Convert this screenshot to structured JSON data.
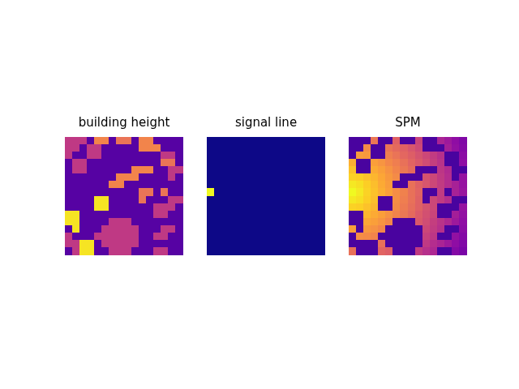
{
  "chart_data": [
    {
      "type": "heatmap",
      "title": "building height",
      "color": "plasma",
      "color_range": [
        0,
        1
      ],
      "tick_labels": false,
      "xlim": [
        -0.5,
        15.5
      ],
      "ylim": [
        15.5,
        -0.5
      ],
      "cells": [
        [
          0.45,
          0.45,
          0.45,
          0.15,
          0.7,
          0.7,
          0.15,
          0.65,
          0.65,
          0.15,
          0.7,
          0.7,
          0.15,
          0.15,
          0.15,
          0.15
        ],
        [
          0.45,
          0.45,
          0.15,
          0.45,
          0.45,
          0.15,
          0.15,
          0.15,
          0.15,
          0.15,
          0.7,
          0.7,
          0.7,
          0.15,
          0.15,
          0.15
        ],
        [
          0.45,
          0.15,
          0.15,
          0.45,
          0.45,
          0.15,
          0.15,
          0.15,
          0.15,
          0.15,
          0.15,
          0.15,
          0.15,
          0.45,
          0.45,
          0.15
        ],
        [
          0.15,
          0.45,
          0.45,
          0.15,
          0.15,
          0.15,
          0.15,
          0.15,
          0.15,
          0.15,
          0.15,
          0.15,
          0.15,
          0.65,
          0.65,
          0.15
        ],
        [
          0.15,
          0.45,
          0.45,
          0.15,
          0.15,
          0.15,
          0.15,
          0.15,
          0.15,
          0.7,
          0.7,
          0.7,
          0.15,
          0.15,
          0.45,
          0.45
        ],
        [
          0.15,
          0.15,
          0.15,
          0.15,
          0.15,
          0.15,
          0.15,
          0.7,
          0.7,
          0.7,
          0.15,
          0.15,
          0.15,
          0.15,
          0.45,
          0.15
        ],
        [
          0.15,
          0.15,
          0.15,
          0.15,
          0.15,
          0.15,
          0.7,
          0.7,
          0.15,
          0.15,
          0.15,
          0.15,
          0.15,
          0.15,
          0.15,
          0.15
        ],
        [
          0.15,
          0.15,
          0.15,
          0.15,
          0.15,
          0.15,
          0.15,
          0.15,
          0.15,
          0.15,
          0.65,
          0.65,
          0.15,
          0.65,
          0.15,
          0.15
        ],
        [
          0.15,
          0.15,
          0.15,
          0.15,
          0.95,
          0.95,
          0.15,
          0.15,
          0.15,
          0.15,
          0.65,
          0.15,
          0.15,
          0.15,
          0.45,
          0.45
        ],
        [
          0.15,
          0.15,
          0.15,
          0.15,
          0.95,
          0.95,
          0.15,
          0.15,
          0.15,
          0.15,
          0.15,
          0.15,
          0.45,
          0.45,
          0.45,
          0.15
        ],
        [
          0.95,
          0.95,
          0.15,
          0.15,
          0.15,
          0.15,
          0.15,
          0.15,
          0.15,
          0.15,
          0.15,
          0.15,
          0.45,
          0.45,
          0.15,
          0.15
        ],
        [
          0.95,
          0.95,
          0.15,
          0.15,
          0.15,
          0.15,
          0.45,
          0.45,
          0.45,
          0.15,
          0.15,
          0.15,
          0.15,
          0.15,
          0.15,
          0.15
        ],
        [
          0.15,
          0.95,
          0.15,
          0.15,
          0.15,
          0.45,
          0.45,
          0.45,
          0.45,
          0.45,
          0.15,
          0.15,
          0.15,
          0.45,
          0.45,
          0.15
        ],
        [
          0.45,
          0.15,
          0.15,
          0.15,
          0.45,
          0.45,
          0.45,
          0.45,
          0.45,
          0.45,
          0.15,
          0.15,
          0.45,
          0.45,
          0.15,
          0.15
        ],
        [
          0.45,
          0.45,
          0.95,
          0.95,
          0.15,
          0.45,
          0.45,
          0.45,
          0.45,
          0.45,
          0.15,
          0.15,
          0.15,
          0.15,
          0.15,
          0.15
        ],
        [
          0.15,
          0.45,
          0.95,
          0.95,
          0.15,
          0.15,
          0.45,
          0.45,
          0.45,
          0.15,
          0.15,
          0.15,
          0.45,
          0.45,
          0.15,
          0.15
        ]
      ]
    },
    {
      "type": "heatmap",
      "title": "signal line",
      "color": "plasma",
      "color_range": [
        0,
        1
      ],
      "tick_labels": false,
      "xlim": [
        -0.5,
        15.5
      ],
      "ylim": [
        15.5,
        -0.5
      ],
      "cells": [
        [
          0,
          0,
          0,
          0,
          0,
          0,
          0,
          0,
          0,
          0,
          0,
          0,
          0,
          0,
          0,
          0
        ],
        [
          0,
          0,
          0,
          0,
          0,
          0,
          0,
          0,
          0,
          0,
          0,
          0,
          0,
          0,
          0,
          0
        ],
        [
          0,
          0,
          0,
          0,
          0,
          0,
          0,
          0,
          0,
          0,
          0,
          0,
          0,
          0,
          0,
          0
        ],
        [
          0,
          0,
          0,
          0,
          0,
          0,
          0,
          0,
          0,
          0,
          0,
          0,
          0,
          0,
          0,
          0
        ],
        [
          0,
          0,
          0,
          0,
          0,
          0,
          0,
          0,
          0,
          0,
          0,
          0,
          0,
          0,
          0,
          0
        ],
        [
          0,
          0,
          0,
          0,
          0,
          0,
          0,
          0,
          0,
          0,
          0,
          0,
          0,
          0,
          0,
          0
        ],
        [
          0,
          0,
          0,
          0,
          0,
          0,
          0,
          0,
          0,
          0,
          0,
          0,
          0,
          0,
          0,
          0
        ],
        [
          1,
          0,
          0,
          0,
          0,
          0,
          0,
          0,
          0,
          0,
          0,
          0,
          0,
          0,
          0,
          0
        ],
        [
          0,
          0,
          0,
          0,
          0,
          0,
          0,
          0,
          0,
          0,
          0,
          0,
          0,
          0,
          0,
          0
        ],
        [
          0,
          0,
          0,
          0,
          0,
          0,
          0,
          0,
          0,
          0,
          0,
          0,
          0,
          0,
          0,
          0
        ],
        [
          0,
          0,
          0,
          0,
          0,
          0,
          0,
          0,
          0,
          0,
          0,
          0,
          0,
          0,
          0,
          0
        ],
        [
          0,
          0,
          0,
          0,
          0,
          0,
          0,
          0,
          0,
          0,
          0,
          0,
          0,
          0,
          0,
          0
        ],
        [
          0,
          0,
          0,
          0,
          0,
          0,
          0,
          0,
          0,
          0,
          0,
          0,
          0,
          0,
          0,
          0
        ],
        [
          0,
          0,
          0,
          0,
          0,
          0,
          0,
          0,
          0,
          0,
          0,
          0,
          0,
          0,
          0,
          0
        ],
        [
          0,
          0,
          0,
          0,
          0,
          0,
          0,
          0,
          0,
          0,
          0,
          0,
          0,
          0,
          0,
          0
        ],
        [
          0,
          0,
          0,
          0,
          0,
          0,
          0,
          0,
          0,
          0,
          0,
          0,
          0,
          0,
          0,
          0
        ]
      ]
    },
    {
      "type": "heatmap",
      "title": "SPM",
      "color": "plasma",
      "color_range": [
        0,
        1
      ],
      "tick_labels": false,
      "xlim": [
        -0.5,
        15.5
      ],
      "ylim": [
        15.5,
        -0.5
      ],
      "cells": [
        [
          0.12,
          0.12,
          0.12,
          0.66,
          0.12,
          0.12,
          0.59,
          0.12,
          0.12,
          0.49,
          0.12,
          0.12,
          0.38,
          0.34,
          0.3,
          0.26
        ],
        [
          0.12,
          0.12,
          0.72,
          0.12,
          0.12,
          0.65,
          0.62,
          0.59,
          0.55,
          0.51,
          0.12,
          0.12,
          0.12,
          0.36,
          0.31,
          0.27
        ],
        [
          0.12,
          0.77,
          0.76,
          0.12,
          0.12,
          0.68,
          0.65,
          0.61,
          0.58,
          0.54,
          0.5,
          0.46,
          0.42,
          0.12,
          0.12,
          0.29
        ],
        [
          0.82,
          0.12,
          0.12,
          0.78,
          0.75,
          0.71,
          0.68,
          0.64,
          0.6,
          0.56,
          0.52,
          0.47,
          0.43,
          0.12,
          0.12,
          0.3
        ],
        [
          0.87,
          0.12,
          0.12,
          0.81,
          0.78,
          0.74,
          0.7,
          0.66,
          0.62,
          0.12,
          0.12,
          0.12,
          0.44,
          0.4,
          0.12,
          0.12
        ],
        [
          0.91,
          0.9,
          0.87,
          0.84,
          0.8,
          0.76,
          0.72,
          0.12,
          0.12,
          0.12,
          0.54,
          0.5,
          0.45,
          0.41,
          0.12,
          0.32
        ],
        [
          0.96,
          0.94,
          0.9,
          0.86,
          0.81,
          0.77,
          0.12,
          0.12,
          0.64,
          0.59,
          0.55,
          0.5,
          0.46,
          0.41,
          0.37,
          0.32
        ],
        [
          1,
          0.96,
          0.91,
          0.87,
          0.82,
          0.78,
          0.73,
          0.69,
          0.64,
          0.6,
          0.12,
          0.12,
          0.46,
          0.12,
          0.37,
          0.33
        ],
        [
          0.96,
          0.94,
          0.9,
          0.86,
          0.12,
          0.12,
          0.73,
          0.68,
          0.64,
          0.59,
          0.12,
          0.5,
          0.46,
          0.41,
          0.12,
          0.12
        ],
        [
          0.91,
          0.9,
          0.87,
          0.84,
          0.12,
          0.12,
          0.72,
          0.67,
          0.63,
          0.59,
          0.54,
          0.5,
          0.12,
          0.12,
          0.12,
          0.32
        ],
        [
          0.12,
          0.12,
          0.84,
          0.81,
          0.78,
          0.74,
          0.7,
          0.66,
          0.62,
          0.57,
          0.53,
          0.49,
          0.12,
          0.12,
          0.36,
          0.31
        ],
        [
          0.12,
          0.12,
          0.8,
          0.78,
          0.75,
          0.71,
          0.12,
          0.12,
          0.12,
          0.56,
          0.52,
          0.47,
          0.43,
          0.39,
          0.34,
          0.3
        ],
        [
          0.78,
          0.12,
          0.76,
          0.74,
          0.71,
          0.12,
          0.12,
          0.12,
          0.12,
          0.12,
          0.5,
          0.46,
          0.42,
          0.12,
          0.12,
          0.29
        ],
        [
          0.12,
          0.73,
          0.72,
          0.7,
          0.12,
          0.12,
          0.12,
          0.12,
          0.12,
          0.12,
          0.48,
          0.44,
          0.12,
          0.12,
          0.31,
          0.27
        ],
        [
          0.12,
          0.12,
          0.12,
          0.12,
          0.64,
          0.12,
          0.12,
          0.12,
          0.12,
          0.12,
          0.45,
          0.41,
          0.38,
          0.34,
          0.3,
          0.26
        ],
        [
          0.64,
          0.12,
          0.12,
          0.12,
          0.6,
          0.58,
          0.12,
          0.12,
          0.12,
          0.46,
          0.42,
          0.39,
          0.12,
          0.12,
          0.27,
          0.24
        ]
      ]
    }
  ]
}
